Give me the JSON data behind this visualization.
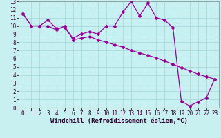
{
  "xlabel": "Windchill (Refroidissement éolien,°C)",
  "background_color": "#c8f0f0",
  "line_color": "#990099",
  "grid_color": "#aadddd",
  "xlim": [
    -0.5,
    23.5
  ],
  "ylim": [
    0,
    13
  ],
  "xticks": [
    0,
    1,
    2,
    3,
    4,
    5,
    6,
    7,
    8,
    9,
    10,
    11,
    12,
    13,
    14,
    15,
    16,
    17,
    18,
    19,
    20,
    21,
    22,
    23
  ],
  "yticks": [
    0,
    1,
    2,
    3,
    4,
    5,
    6,
    7,
    8,
    9,
    10,
    11,
    12,
    13
  ],
  "series1_x": [
    0,
    1,
    2,
    3,
    4,
    5,
    6,
    7,
    8,
    9,
    10,
    11,
    12,
    13,
    14,
    15,
    16,
    17,
    18,
    19,
    20,
    21,
    22,
    23
  ],
  "series1_y": [
    11.5,
    10.0,
    10.0,
    10.7,
    9.7,
    9.8,
    8.5,
    9.0,
    9.3,
    9.0,
    10.0,
    10.0,
    11.7,
    13.0,
    11.2,
    12.8,
    11.0,
    10.7,
    9.8,
    0.8,
    0.2,
    0.7,
    1.2,
    3.5
  ],
  "series2_x": [
    0,
    1,
    2,
    3,
    4,
    5,
    6,
    7,
    8,
    9,
    10,
    11,
    12,
    13,
    14,
    15,
    16,
    17,
    18,
    19,
    20,
    21,
    22,
    23
  ],
  "series2_y": [
    11.5,
    10.0,
    10.0,
    10.0,
    9.5,
    10.0,
    8.3,
    8.5,
    8.7,
    8.3,
    8.0,
    7.7,
    7.4,
    7.0,
    6.7,
    6.4,
    6.1,
    5.7,
    5.3,
    4.9,
    4.5,
    4.1,
    3.8,
    3.5
  ],
  "tick_fontsize": 5.5,
  "label_fontsize": 6.5
}
